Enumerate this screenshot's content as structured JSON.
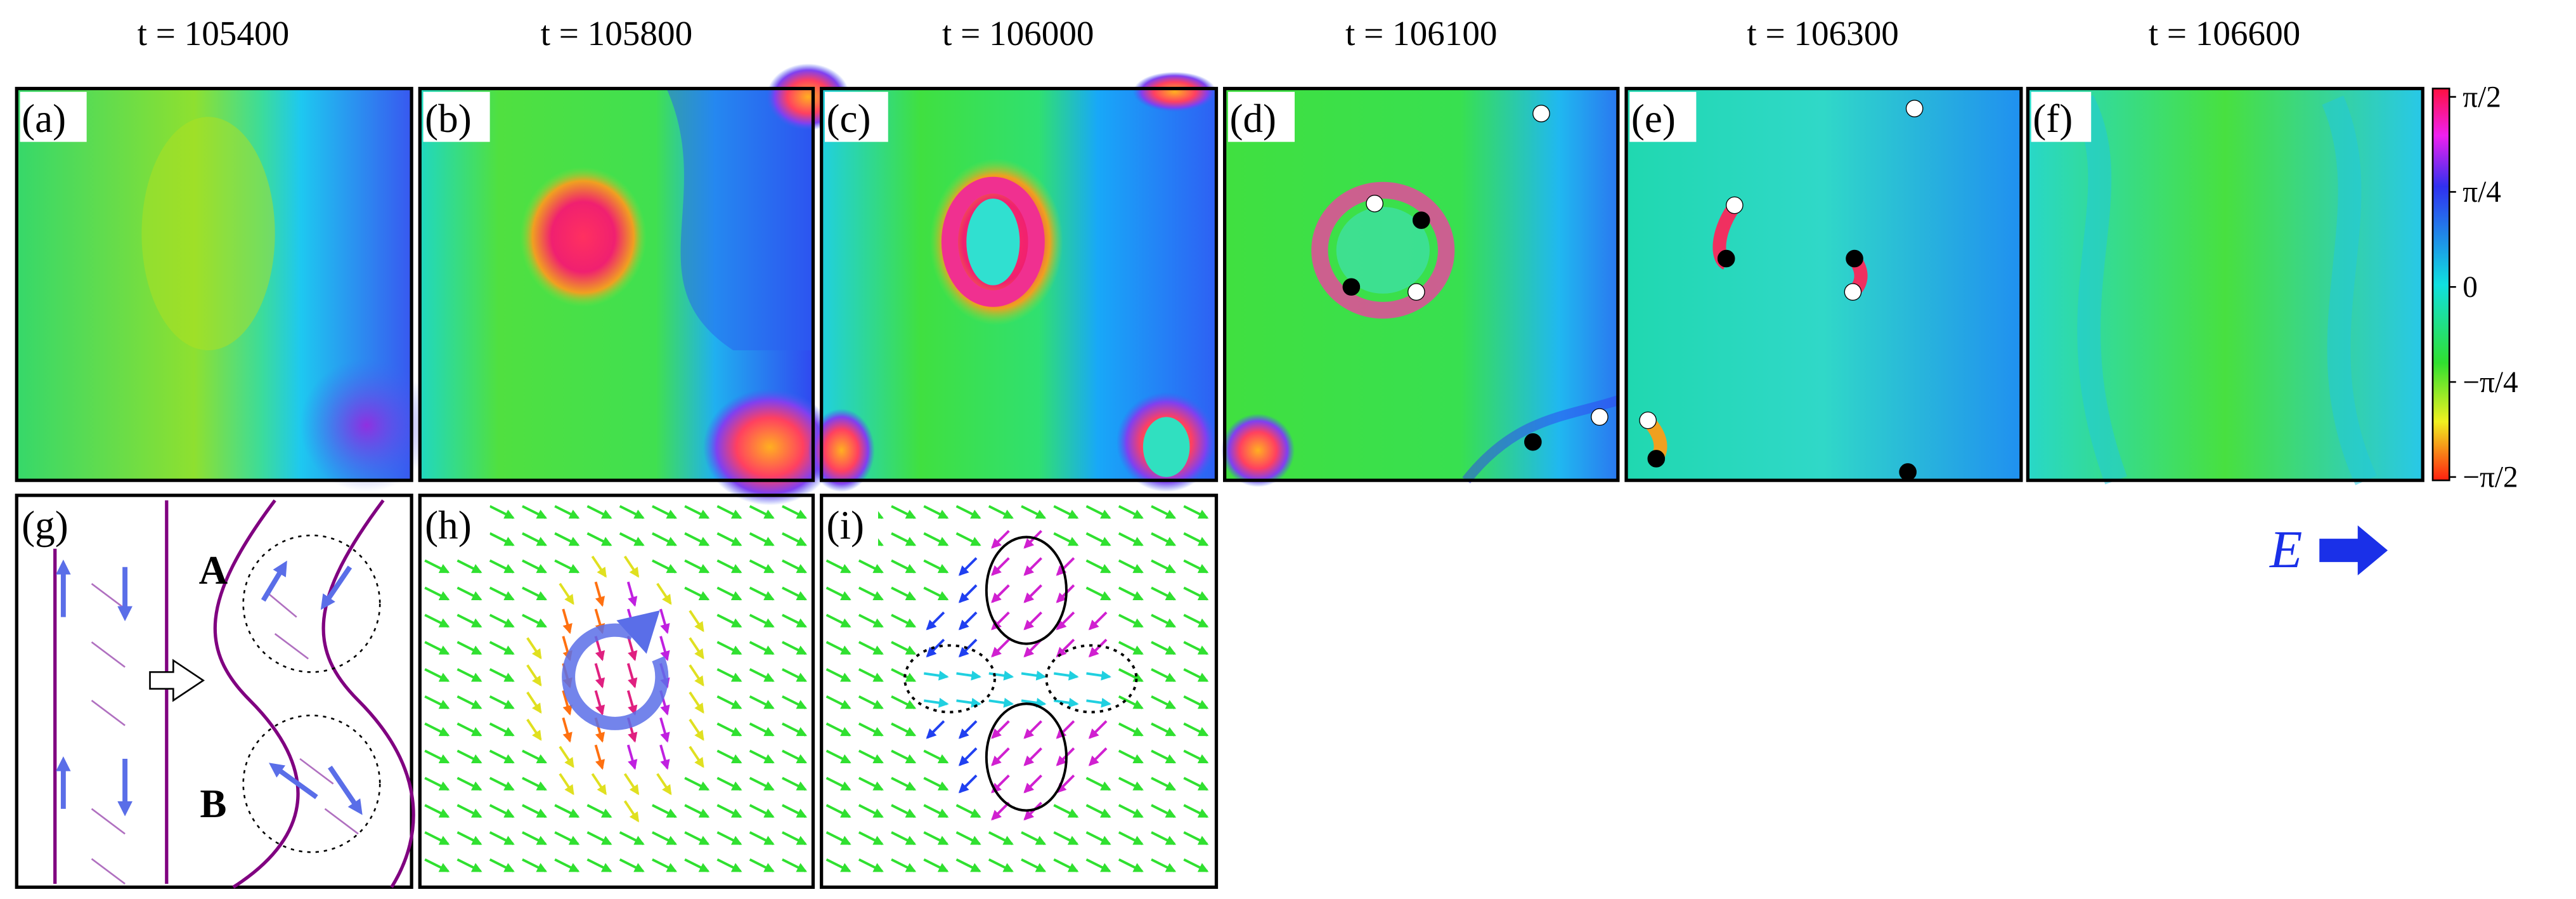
{
  "titles": [
    "t = 105400",
    "t = 105800",
    "t = 106000",
    "t = 106100",
    "t = 106300",
    "t = 106600"
  ],
  "panel_labels": [
    "(a)",
    "(b)",
    "(c)",
    "(d)",
    "(e)",
    "(f)",
    "(g)",
    "(h)",
    "(i)"
  ],
  "schematic_labels": [
    "A",
    "B"
  ],
  "field_label": "E",
  "colorbar": {
    "range": [
      -1.5708,
      1.5708
    ],
    "ticks": [
      {
        "value": 1.5708,
        "label": "π/2"
      },
      {
        "value": 0.7854,
        "label": "π/4"
      },
      0,
      {
        "value": -0.7854,
        "label": "−π/4"
      },
      {
        "value": -1.5708,
        "label": "−π/2"
      }
    ]
  }
}
